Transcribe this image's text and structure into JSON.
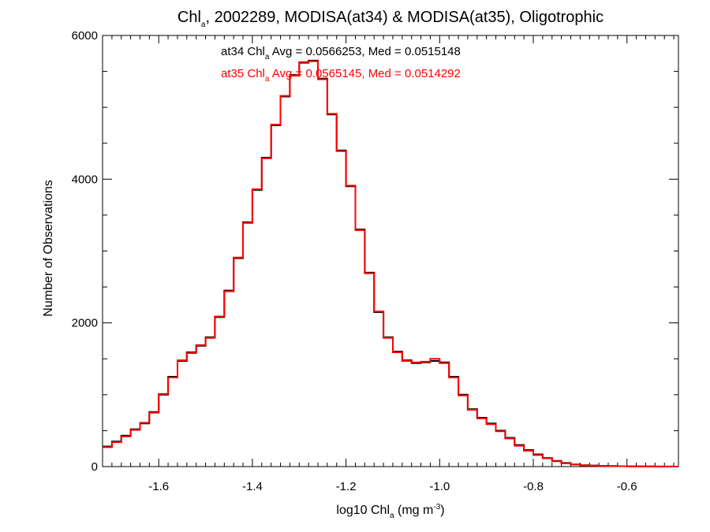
{
  "chart_data": {
    "type": "line",
    "step": true,
    "title": {
      "pre": "Chl",
      "sub": "a",
      "post": ", 2002289, MODISA(at34) & MODISA(at35), Oligotrophic"
    },
    "xlabel": {
      "pre": "log10 Chl",
      "sub": "a",
      "mid": " (mg m",
      "sup": "-3",
      "post": ")"
    },
    "ylabel": "Number of Observations",
    "xlim": [
      -1.72,
      -0.49
    ],
    "ylim": [
      0,
      6000
    ],
    "xticks": [
      -1.6,
      -1.4,
      -1.2,
      -1.0,
      -0.8,
      -0.6
    ],
    "xtick_labels": [
      "-1.6",
      "-1.4",
      "-1.2",
      "-1.0",
      "-0.8",
      "-0.6"
    ],
    "yticks": [
      0,
      2000,
      4000,
      6000
    ],
    "ytick_labels": [
      "0",
      "2000",
      "4000",
      "6000"
    ],
    "legend_placement": "top-center",
    "annotations": [
      {
        "pre": "at34 Chl",
        "sub": "a",
        "post": " Avg = 0.0566253, Med = 0.0515148",
        "color": "#000000"
      },
      {
        "pre": "at35 Chl",
        "sub": "a",
        "post": " Avg = 0.0565145, Med = 0.0514292",
        "color": "#ff0000"
      }
    ],
    "series": [
      {
        "color": "#000000",
        "x": [
          -1.72,
          -1.7,
          -1.68,
          -1.66,
          -1.64,
          -1.62,
          -1.6,
          -1.58,
          -1.56,
          -1.54,
          -1.52,
          -1.5,
          -1.48,
          -1.46,
          -1.44,
          -1.42,
          -1.4,
          -1.38,
          -1.36,
          -1.34,
          -1.32,
          -1.3,
          -1.28,
          -1.26,
          -1.24,
          -1.22,
          -1.2,
          -1.18,
          -1.16,
          -1.14,
          -1.12,
          -1.1,
          -1.08,
          -1.06,
          -1.04,
          -1.02,
          -1.0,
          -0.98,
          -0.96,
          -0.94,
          -0.92,
          -0.9,
          -0.88,
          -0.86,
          -0.84,
          -0.82,
          -0.8,
          -0.78,
          -0.76,
          -0.74,
          -0.72,
          -0.7,
          -0.68,
          -0.66,
          -0.64,
          -0.62,
          -0.6,
          -0.58,
          -0.56,
          -0.54,
          -0.52,
          -0.5
        ],
        "y": [
          280,
          350,
          430,
          520,
          600,
          760,
          1000,
          1250,
          1470,
          1590,
          1680,
          1800,
          2080,
          2450,
          2900,
          3400,
          3850,
          4300,
          4750,
          5150,
          5450,
          5620,
          5650,
          5400,
          4900,
          4400,
          3900,
          3300,
          2700,
          2150,
          1800,
          1600,
          1480,
          1440,
          1450,
          1470,
          1450,
          1250,
          1000,
          800,
          680,
          600,
          500,
          400,
          300,
          230,
          170,
          120,
          80,
          50,
          30,
          20,
          15,
          10,
          8,
          5,
          4,
          3,
          2,
          1,
          1,
          0
        ]
      },
      {
        "color": "#ff0000",
        "x": [
          -1.72,
          -1.7,
          -1.68,
          -1.66,
          -1.64,
          -1.62,
          -1.6,
          -1.58,
          -1.56,
          -1.54,
          -1.52,
          -1.5,
          -1.48,
          -1.46,
          -1.44,
          -1.42,
          -1.4,
          -1.38,
          -1.36,
          -1.34,
          -1.32,
          -1.3,
          -1.28,
          -1.26,
          -1.24,
          -1.22,
          -1.2,
          -1.18,
          -1.16,
          -1.14,
          -1.12,
          -1.1,
          -1.08,
          -1.06,
          -1.04,
          -1.02,
          -1.0,
          -0.98,
          -0.96,
          -0.94,
          -0.92,
          -0.9,
          -0.88,
          -0.86,
          -0.84,
          -0.82,
          -0.8,
          -0.78,
          -0.76,
          -0.74,
          -0.72,
          -0.7,
          -0.68,
          -0.66,
          -0.64,
          -0.62,
          -0.6,
          -0.58,
          -0.56,
          -0.54,
          -0.52,
          -0.5
        ],
        "y": [
          270,
          340,
          420,
          510,
          610,
          750,
          1010,
          1240,
          1480,
          1580,
          1690,
          1790,
          2090,
          2440,
          2910,
          3390,
          3860,
          4290,
          4760,
          5160,
          5440,
          5630,
          5640,
          5390,
          4910,
          4390,
          3910,
          3290,
          2690,
          2160,
          1790,
          1590,
          1470,
          1450,
          1460,
          1500,
          1440,
          1240,
          990,
          790,
          670,
          590,
          490,
          390,
          290,
          220,
          160,
          115,
          75,
          45,
          28,
          18,
          13,
          9,
          7,
          5,
          3,
          2,
          2,
          1,
          0,
          0
        ]
      }
    ]
  }
}
